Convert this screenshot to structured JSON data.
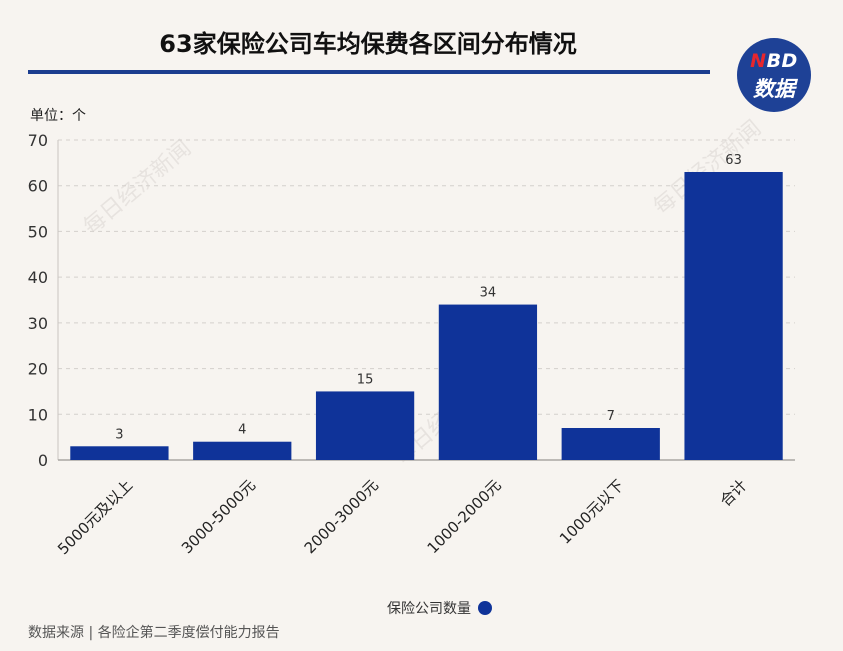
{
  "title": "63家保险公司车均保费各区间分布情况",
  "logo": {
    "n": "N",
    "bd": "BD",
    "line2": "数据"
  },
  "unit_label": "单位：个",
  "source": "数据来源 | 各险企第二季度偿付能力报告",
  "watermark": "每日经济新闻",
  "chart_data": {
    "type": "bar",
    "categories": [
      "5000元及以上",
      "3000-5000元",
      "2000-3000元",
      "1000-2000元",
      "1000元以下",
      "合计"
    ],
    "series": [
      {
        "name": "保险公司数量",
        "values": [
          3,
          4,
          15,
          34,
          7,
          63
        ],
        "color": "#0f3399"
      }
    ],
    "ylim": [
      0,
      70
    ],
    "yticks": [
      0,
      10,
      20,
      30,
      40,
      50,
      60,
      70
    ],
    "grid": true,
    "legend_position": "bottom-center",
    "bar_color": "#0f3399"
  }
}
